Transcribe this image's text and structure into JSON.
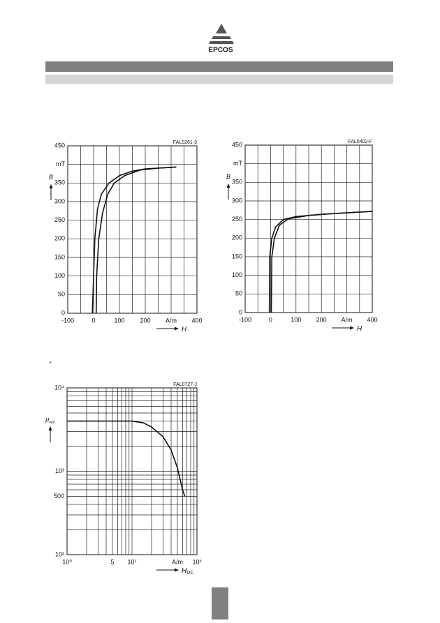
{
  "logo": "EPCOS",
  "mark": "^",
  "chart_data": [
    {
      "type": "line",
      "code": "FAL0261-3",
      "xlabel": "H",
      "ylabel": "B",
      "xlim": [
        -100,
        400
      ],
      "ylim": [
        0,
        450
      ],
      "xticks": [
        -100,
        0,
        100,
        200,
        {
          "value": 300,
          "label": "A/m"
        },
        400
      ],
      "xminor": [
        -50,
        50,
        150,
        250,
        350
      ],
      "yticks": [
        0,
        50,
        100,
        150,
        200,
        250,
        300,
        350,
        {
          "value": 400,
          "label": "mT"
        },
        450
      ],
      "series": [
        {
          "color": "#111111",
          "x": [
            -5,
            0,
            5,
            15,
            30,
            60,
            100,
            150,
            200,
            250,
            320
          ],
          "values": [
            0,
            100,
            200,
            280,
            320,
            350,
            370,
            382,
            388,
            390,
            393
          ]
        },
        {
          "color": "#111111",
          "x": [
            10,
            12,
            20,
            35,
            55,
            80,
            120,
            180,
            250,
            320
          ],
          "values": [
            0,
            100,
            200,
            270,
            320,
            350,
            370,
            385,
            390,
            393
          ]
        }
      ]
    },
    {
      "type": "line",
      "code": "FAL0402-F",
      "xlabel": "H",
      "ylabel": "B",
      "xlim": [
        -100,
        400
      ],
      "ylim": [
        0,
        450
      ],
      "xticks": [
        -100,
        0,
        100,
        200,
        {
          "value": 300,
          "label": "A/m"
        },
        400
      ],
      "xminor": [
        -50,
        50,
        150,
        250,
        350
      ],
      "yticks": [
        0,
        50,
        100,
        150,
        200,
        250,
        300,
        350,
        {
          "value": 400,
          "label": "mT"
        },
        450
      ],
      "series": [
        {
          "color": "#111111",
          "x": [
            -5,
            -3,
            5,
            20,
            50,
            100,
            200,
            300,
            400
          ],
          "values": [
            0,
            150,
            200,
            230,
            250,
            258,
            264,
            268,
            272
          ]
        },
        {
          "color": "#111111",
          "x": [
            3,
            5,
            15,
            35,
            70,
            150,
            250,
            400
          ],
          "values": [
            0,
            150,
            200,
            235,
            252,
            261,
            266,
            272
          ]
        }
      ]
    },
    {
      "type": "line",
      "code": "FAL0727-J",
      "xlabel": "H",
      "xlabel_sub": "DC",
      "ylabel": "μ",
      "ylabel_sub": "rev",
      "log": true,
      "xlim": [
        1,
        100
      ],
      "ylim": [
        100,
        10000
      ],
      "xticks": [
        {
          "value": 1,
          "label": "10⁰"
        },
        5,
        {
          "value": 10,
          "label": "10¹"
        },
        {
          "value": 50,
          "label": "A/m"
        },
        {
          "value": 100,
          "label": "10²"
        }
      ],
      "xminor": [
        2,
        3,
        4,
        6,
        7,
        8,
        9,
        20,
        30,
        40,
        60,
        70,
        80,
        90
      ],
      "yticks": [
        {
          "value": 100,
          "label": "10²"
        },
        500,
        {
          "value": 1000,
          "label": "10³"
        },
        {
          "value": 10000,
          "label": "10⁴"
        }
      ],
      "yminor": [
        200,
        300,
        400,
        600,
        700,
        800,
        900,
        2000,
        3000,
        4000,
        5000,
        6000,
        7000,
        8000,
        9000
      ],
      "series": [
        {
          "color": "#111111",
          "x": [
            1,
            5,
            10,
            15,
            20,
            30,
            40,
            50,
            60,
            65
          ],
          "values": [
            4000,
            4000,
            4000,
            3800,
            3400,
            2600,
            1800,
            1100,
            600,
            500
          ]
        }
      ]
    }
  ]
}
